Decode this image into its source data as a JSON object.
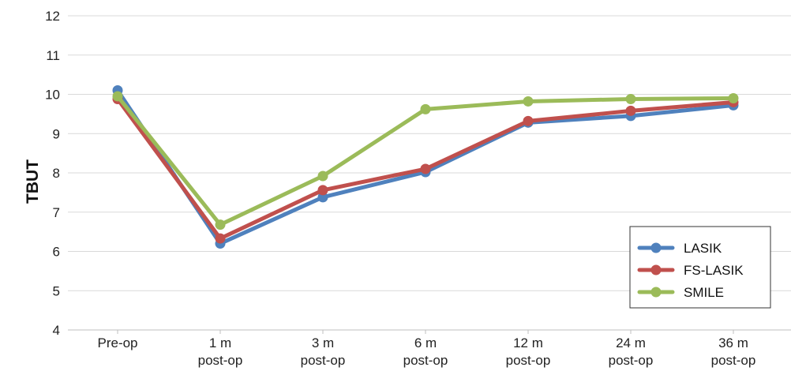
{
  "chart_data": {
    "type": "line",
    "title": "",
    "xlabel": "",
    "ylabel": "TBUT",
    "ylim": [
      4,
      12
    ],
    "yticks": [
      4,
      5,
      6,
      7,
      8,
      9,
      10,
      11,
      12
    ],
    "grid": true,
    "legend_position": "bottom-right",
    "categories": [
      [
        "Pre-op"
      ],
      [
        "1 m",
        "post-op"
      ],
      [
        "3 m",
        "post-op"
      ],
      [
        "6 m",
        "post-op"
      ],
      [
        "12 m",
        "post-op"
      ],
      [
        "24 m",
        "post-op"
      ],
      [
        "36 m",
        "post-op"
      ]
    ],
    "series": [
      {
        "name": "LASIK",
        "color": "#4f81bd",
        "values": [
          10.1,
          6.2,
          7.38,
          8.02,
          9.28,
          9.45,
          9.72
        ]
      },
      {
        "name": "FS-LASIK",
        "color": "#c0504d",
        "values": [
          9.88,
          6.33,
          7.56,
          8.1,
          9.32,
          9.58,
          9.8
        ]
      },
      {
        "name": "SMILE",
        "color": "#9bbb59",
        "values": [
          9.95,
          6.68,
          7.92,
          9.62,
          9.82,
          9.88,
          9.9
        ]
      }
    ]
  }
}
